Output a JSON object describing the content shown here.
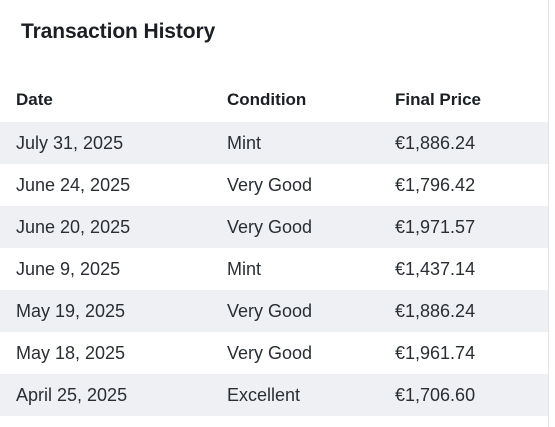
{
  "title": "Transaction History",
  "table": {
    "headers": {
      "date": "Date",
      "condition": "Condition",
      "price": "Final Price"
    },
    "rows": [
      {
        "date": "July 31, 2025",
        "condition": "Mint",
        "price": "€1,886.24"
      },
      {
        "date": "June 24, 2025",
        "condition": "Very Good",
        "price": "€1,796.42"
      },
      {
        "date": "June 20, 2025",
        "condition": "Very Good",
        "price": "€1,971.57"
      },
      {
        "date": "June 9, 2025",
        "condition": "Mint",
        "price": "€1,437.14"
      },
      {
        "date": "May 19, 2025",
        "condition": "Very Good",
        "price": "€1,886.24"
      },
      {
        "date": "May 18, 2025",
        "condition": "Very Good",
        "price": "€1,961.74"
      },
      {
        "date": "April 25, 2025",
        "condition": "Excellent",
        "price": "€1,706.60"
      }
    ]
  },
  "colors": {
    "row_stripe": "#eef0f3",
    "text": "#1b1f24"
  }
}
